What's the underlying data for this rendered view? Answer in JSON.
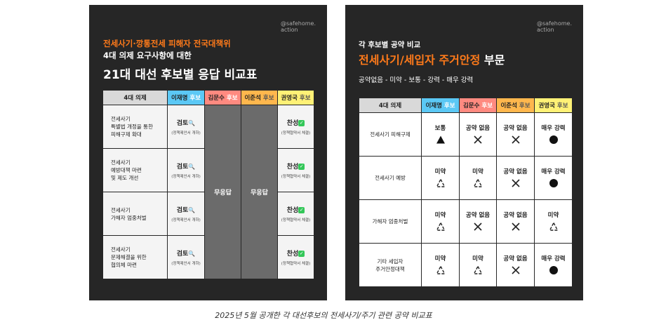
{
  "brand": {
    "line1": "@safehome.",
    "line2": "action"
  },
  "card1": {
    "title_line1": "전세사기·깡통전세 피해자 전국대책위",
    "title_line2": "4대 의제 요구사항에 대한",
    "title_line3": "21대 대선 후보별 응답 비교표",
    "headers": {
      "issue": "4대 의제",
      "lee": "이재명",
      "kim": "김문수",
      "ljs": "이준석",
      "kwon": "권영국",
      "suffix": "후보"
    },
    "rows": [
      {
        "issue": [
          "전세사기",
          "특별법 개정을 통한",
          "피해구제 확대"
        ],
        "lee": "검토",
        "lee_note": "(정책제안서 개하)",
        "kwon": "찬성",
        "kwon_note": "(정책협약서 체결)"
      },
      {
        "issue": [
          "전세사기",
          "예방대책 마련",
          "및 제도 개선"
        ],
        "lee": "검토",
        "lee_note": "(정책제안서 개하)",
        "kwon": "찬성",
        "kwon_note": "(정책협약서 체결)"
      },
      {
        "issue": [
          "전세사기",
          "가해자 엄중처벌"
        ],
        "lee": "검토",
        "lee_note": "(정책제안서 개하)",
        "kwon": "찬성",
        "kwon_note": "(정책협약서 체결)"
      },
      {
        "issue": [
          "전세사기",
          "문제해결을 위한",
          "협의체 마련"
        ],
        "lee": "검토",
        "lee_note": "(정책제안서 개하)",
        "kwon": "찬성",
        "kwon_note": "(정책협약서 체결)"
      }
    ],
    "no_response_kim": "무응답",
    "no_response_ljs": "무응답"
  },
  "card2": {
    "title_line1": "각 후보별 공약 비교",
    "title_main": "전세사기/세입자 주거안정",
    "title_suffix": "부문",
    "legend": "공약없음 -  미약 - 보통 - 강력 - 매우 강력",
    "headers": {
      "issue": "4대 의제",
      "lee": "이재명",
      "kim": "김문수",
      "ljs": "이준석",
      "kwon": "권영국",
      "suffix": "후보"
    },
    "rows": [
      {
        "issue": [
          "전세사기 피해구제"
        ],
        "lee": "보통",
        "kim": "공약 없음",
        "ljs": "공약 없음",
        "kwon": "매우 강력"
      },
      {
        "issue": [
          "전세사기 예방"
        ],
        "lee": "미약",
        "kim": "미약",
        "ljs": "공약 없음",
        "kwon": "매우 강력"
      },
      {
        "issue": [
          "가해자 엄중처벌"
        ],
        "lee": "미약",
        "kim": "공약 없음",
        "ljs": "공약 없음",
        "kwon": "미약"
      },
      {
        "issue": [
          "기타 세입자",
          "주거안정대책"
        ],
        "lee": "미약",
        "kim": "미약",
        "ljs": "공약 없음",
        "kwon": "매우 강력"
      }
    ]
  },
  "caption": "2025년 5월 공개한 각 대선후보의 전세사기/주기 관련 공약 비교표"
}
